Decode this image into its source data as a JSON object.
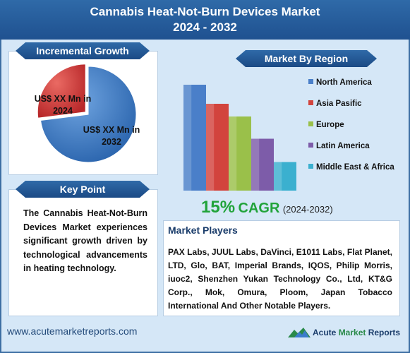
{
  "header": {
    "title_line1": "Cannabis Heat-Not-Burn Devices Market",
    "title_line2": "2024 - 2032"
  },
  "incremental": {
    "banner": "Incremental Growth",
    "label_2024_line1": "US$ XX Mn in",
    "label_2024_line2": "2024",
    "label_2032_line1": "US$ XX Mn in",
    "label_2032_line2": "2032"
  },
  "key_point": {
    "banner": "Key Point",
    "text": "The Cannabis Heat-Not-Burn Devices Market experiences significant growth driven by technological advancements in heating technology."
  },
  "region": {
    "banner": "Market By Region"
  },
  "cagr": {
    "value": "15%",
    "label": "CAGR",
    "years": "(2024-2032)"
  },
  "players": {
    "title": "Market Players",
    "text": "PAX Labs, JUUL Labs, DaVinci, E1011 Labs, Flat Planet, LTD, Glo, BAT, Imperial Brands, IQOS, Philip Morris, iuoc2, Shenzhen Yukan Technology Co., Ltd, KT&G Corp., Mok, Omura, Ploom, Japan Tobacco International And Other Notable Players."
  },
  "footer": {
    "url": "www.acutemarketreports.com",
    "logo_word1": "Acute",
    "logo_word2": "Market",
    "logo_word3": "Reports"
  },
  "colors": {
    "header": "#2f6aa8",
    "pie_2024": "#d83a35",
    "pie_2032": "#3b7ccb",
    "cagr": "#21a33a"
  },
  "chart_data": [
    {
      "type": "pie",
      "categories": [
        "2024",
        "2032"
      ],
      "values": [
        27,
        73
      ]
    },
    {
      "type": "bar",
      "categories": [
        "North America",
        "Asia Pasific",
        "Europe",
        "Latin America",
        "Middle East & Africa"
      ],
      "values": [
        100,
        82,
        70,
        49,
        27
      ],
      "colors": [
        "#4a7fc9",
        "#d2443d",
        "#9ac04a",
        "#7d5ca9",
        "#3bb0cf"
      ],
      "legend": "right",
      "ylim": [
        0,
        100
      ],
      "grid": false
    }
  ]
}
